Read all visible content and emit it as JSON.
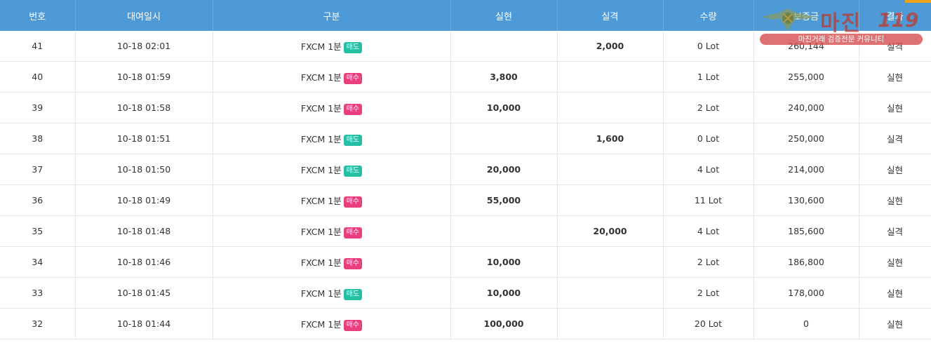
{
  "columns": [
    "번호",
    "대여일시",
    "구분",
    "실현",
    "실격",
    "수량",
    "보증금",
    "결과"
  ],
  "rows": [
    {
      "no": "41",
      "datetime": "10-18 02:01",
      "instrument": "FXCM 1분",
      "side": "매도",
      "side_type": "sell",
      "profit": "",
      "loss": "2,000",
      "qty": "0 Lot",
      "deposit": "260,144",
      "result": "실격",
      "result_type": "lose"
    },
    {
      "no": "40",
      "datetime": "10-18 01:59",
      "instrument": "FXCM 1분",
      "side": "매수",
      "side_type": "buy",
      "profit": "3,800",
      "loss": "",
      "qty": "1 Lot",
      "deposit": "255,000",
      "result": "실현",
      "result_type": "win"
    },
    {
      "no": "39",
      "datetime": "10-18 01:58",
      "instrument": "FXCM 1분",
      "side": "매수",
      "side_type": "buy",
      "profit": "10,000",
      "loss": "",
      "qty": "2 Lot",
      "deposit": "240,000",
      "result": "실현",
      "result_type": "win"
    },
    {
      "no": "38",
      "datetime": "10-18 01:51",
      "instrument": "FXCM 1분",
      "side": "매도",
      "side_type": "sell",
      "profit": "",
      "loss": "1,600",
      "qty": "0 Lot",
      "deposit": "250,000",
      "result": "실격",
      "result_type": "lose"
    },
    {
      "no": "37",
      "datetime": "10-18 01:50",
      "instrument": "FXCM 1분",
      "side": "매도",
      "side_type": "sell",
      "profit": "20,000",
      "loss": "",
      "qty": "4 Lot",
      "deposit": "214,000",
      "result": "실현",
      "result_type": "win"
    },
    {
      "no": "36",
      "datetime": "10-18 01:49",
      "instrument": "FXCM 1분",
      "side": "매수",
      "side_type": "buy",
      "profit": "55,000",
      "loss": "",
      "qty": "11 Lot",
      "deposit": "130,600",
      "result": "실현",
      "result_type": "win"
    },
    {
      "no": "35",
      "datetime": "10-18 01:48",
      "instrument": "FXCM 1분",
      "side": "매수",
      "side_type": "buy",
      "profit": "",
      "loss": "20,000",
      "qty": "4 Lot",
      "deposit": "185,600",
      "result": "실격",
      "result_type": "lose"
    },
    {
      "no": "34",
      "datetime": "10-18 01:46",
      "instrument": "FXCM 1분",
      "side": "매수",
      "side_type": "buy",
      "profit": "10,000",
      "loss": "",
      "qty": "2 Lot",
      "deposit": "186,800",
      "result": "실현",
      "result_type": "win"
    },
    {
      "no": "33",
      "datetime": "10-18 01:45",
      "instrument": "FXCM 1분",
      "side": "매도",
      "side_type": "sell",
      "profit": "10,000",
      "loss": "",
      "qty": "2 Lot",
      "deposit": "178,000",
      "result": "실현",
      "result_type": "win"
    },
    {
      "no": "32",
      "datetime": "10-18 01:44",
      "instrument": "FXCM 1분",
      "side": "매수",
      "side_type": "buy",
      "profit": "100,000",
      "loss": "",
      "qty": "20 Lot",
      "deposit": "0",
      "result": "실현",
      "result_type": "win"
    }
  ],
  "watermark": {
    "title": "마진",
    "number": "119",
    "subtitle": "마진거래 검증전문 커뮤니티"
  },
  "colors": {
    "header_bg": "#4e9ad6",
    "sell_badge": "#25bfa4",
    "buy_badge": "#e8407f",
    "profit_text": "#5fb3bf",
    "loss_text": "#c9413c",
    "result_win": "#3f8cc4",
    "result_lose": "#d2433e"
  }
}
